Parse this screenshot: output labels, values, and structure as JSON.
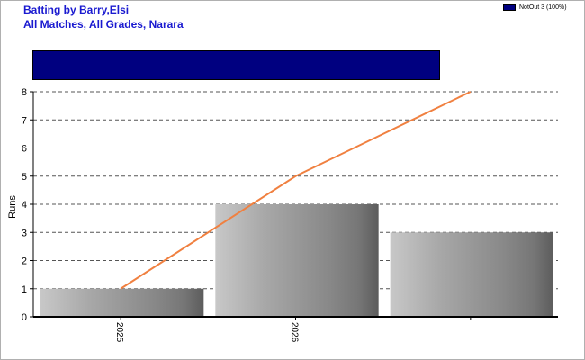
{
  "header": {
    "title_line1": "Batting by Barry,Elsi",
    "title_line2": "All Matches, All Grades, Narara"
  },
  "legend": {
    "label": "NotOut 3 (100%)",
    "color": "#000080"
  },
  "not_out_bar": {
    "fraction": 1.0,
    "color": "#000080"
  },
  "chart_data": {
    "type": "bar",
    "categories": [
      "2025",
      "2026",
      ""
    ],
    "ylabel": "Runs",
    "xlabel": "",
    "ylim": [
      0,
      8
    ],
    "yticks": [
      0,
      1,
      2,
      3,
      4,
      5,
      6,
      7,
      8
    ],
    "grid": true,
    "series": [
      {
        "values": [
          1,
          4,
          3
        ],
        "style": "bar",
        "color": "#a0a0a0"
      },
      {
        "values": [
          1,
          5,
          8
        ],
        "style": "line",
        "color": "#f08040"
      }
    ]
  }
}
